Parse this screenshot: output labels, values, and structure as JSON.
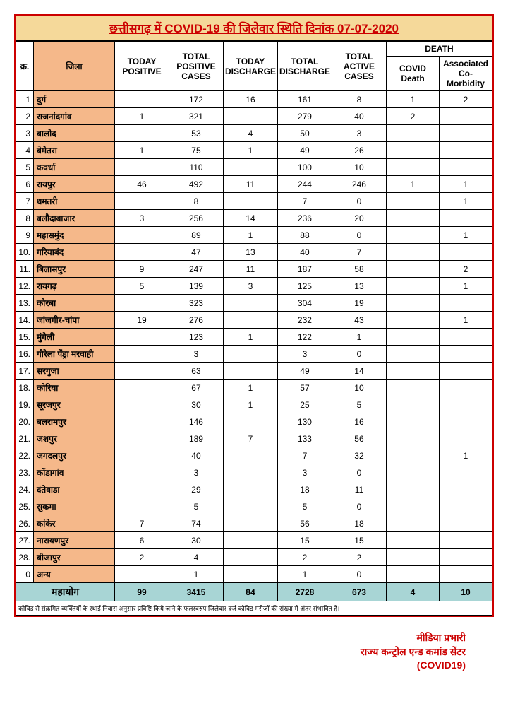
{
  "title": "छत्तीसगढ़ में COVID-19 की जिलेवार स्थिति दिनांक 07-07-2020",
  "headers": {
    "serial": "क्र.",
    "district": "जिला",
    "today_positive": "TODAY POSITIVE",
    "total_positive": "TOTAL POSITIVE CASES",
    "today_discharge": "TODAY DISCHARGE",
    "total_discharge": "TOTAL DISCHARGE",
    "total_active": "TOTAL ACTIVE CASES",
    "death": "DEATH",
    "covid_death": "COVID Death",
    "comorbidity": "Associated Co-Morbidity"
  },
  "rows": [
    {
      "n": "1",
      "d": "दुर्ग",
      "tp": "",
      "tpc": "172",
      "td": "16",
      "tdc": "161",
      "ac": "8",
      "cd": "1",
      "cm": "2"
    },
    {
      "n": "2",
      "d": "राजनांदगांव",
      "tp": "1",
      "tpc": "321",
      "td": "",
      "tdc": "279",
      "ac": "40",
      "cd": "2",
      "cm": ""
    },
    {
      "n": "3",
      "d": "बालोद",
      "tp": "",
      "tpc": "53",
      "td": "4",
      "tdc": "50",
      "ac": "3",
      "cd": "",
      "cm": ""
    },
    {
      "n": "4",
      "d": "बेमेतरा",
      "tp": "1",
      "tpc": "75",
      "td": "1",
      "tdc": "49",
      "ac": "26",
      "cd": "",
      "cm": ""
    },
    {
      "n": "5",
      "d": "कवर्धा",
      "tp": "",
      "tpc": "110",
      "td": "",
      "tdc": "100",
      "ac": "10",
      "cd": "",
      "cm": ""
    },
    {
      "n": "6",
      "d": "रायपुर",
      "tp": "46",
      "tpc": "492",
      "td": "11",
      "tdc": "244",
      "ac": "246",
      "cd": "1",
      "cm": "1"
    },
    {
      "n": "7",
      "d": "धमतरी",
      "tp": "",
      "tpc": "8",
      "td": "",
      "tdc": "7",
      "ac": "0",
      "cd": "",
      "cm": "1"
    },
    {
      "n": "8",
      "d": "बलौदाबाजार",
      "tp": "3",
      "tpc": "256",
      "td": "14",
      "tdc": "236",
      "ac": "20",
      "cd": "",
      "cm": ""
    },
    {
      "n": "9",
      "d": "महासमुंद",
      "tp": "",
      "tpc": "89",
      "td": "1",
      "tdc": "88",
      "ac": "0",
      "cd": "",
      "cm": "1"
    },
    {
      "n": "10.",
      "d": "गरियाबंद",
      "tp": "",
      "tpc": "47",
      "td": "13",
      "tdc": "40",
      "ac": "7",
      "cd": "",
      "cm": ""
    },
    {
      "n": "11.",
      "d": "बिलासपुर",
      "tp": "9",
      "tpc": "247",
      "td": "11",
      "tdc": "187",
      "ac": "58",
      "cd": "",
      "cm": "2"
    },
    {
      "n": "12.",
      "d": "रायगढ़",
      "tp": "5",
      "tpc": "139",
      "td": "3",
      "tdc": "125",
      "ac": "13",
      "cd": "",
      "cm": "1"
    },
    {
      "n": "13.",
      "d": "कोरबा",
      "tp": "",
      "tpc": "323",
      "td": "",
      "tdc": "304",
      "ac": "19",
      "cd": "",
      "cm": ""
    },
    {
      "n": "14.",
      "d": "जांजगीर-चांपा",
      "tp": "19",
      "tpc": "276",
      "td": "",
      "tdc": "232",
      "ac": "43",
      "cd": "",
      "cm": "1"
    },
    {
      "n": "15.",
      "d": "मुंगेली",
      "tp": "",
      "tpc": "123",
      "td": "1",
      "tdc": "122",
      "ac": "1",
      "cd": "",
      "cm": ""
    },
    {
      "n": "16.",
      "d": "गौरेला पेंड्रा मरवाही",
      "tp": "",
      "tpc": "3",
      "td": "",
      "tdc": "3",
      "ac": "0",
      "cd": "",
      "cm": ""
    },
    {
      "n": "17.",
      "d": "सरगुजा",
      "tp": "",
      "tpc": "63",
      "td": "",
      "tdc": "49",
      "ac": "14",
      "cd": "",
      "cm": ""
    },
    {
      "n": "18.",
      "d": "कोरिया",
      "tp": "",
      "tpc": "67",
      "td": "1",
      "tdc": "57",
      "ac": "10",
      "cd": "",
      "cm": ""
    },
    {
      "n": "19.",
      "d": "सूरजपुर",
      "tp": "",
      "tpc": "30",
      "td": "1",
      "tdc": "25",
      "ac": "5",
      "cd": "",
      "cm": ""
    },
    {
      "n": "20.",
      "d": "बलरामपुर",
      "tp": "",
      "tpc": "146",
      "td": "",
      "tdc": "130",
      "ac": "16",
      "cd": "",
      "cm": ""
    },
    {
      "n": "21.",
      "d": "जशपुर",
      "tp": "",
      "tpc": "189",
      "td": "7",
      "tdc": "133",
      "ac": "56",
      "cd": "",
      "cm": ""
    },
    {
      "n": "22.",
      "d": "जगदलपुर",
      "tp": "",
      "tpc": "40",
      "td": "",
      "tdc": "7",
      "ac": "32",
      "cd": "",
      "cm": "1"
    },
    {
      "n": "23.",
      "d": "कोंडागांव",
      "tp": "",
      "tpc": "3",
      "td": "",
      "tdc": "3",
      "ac": "0",
      "cd": "",
      "cm": ""
    },
    {
      "n": "24.",
      "d": "दंतेवाडा",
      "tp": "",
      "tpc": "29",
      "td": "",
      "tdc": "18",
      "ac": "11",
      "cd": "",
      "cm": ""
    },
    {
      "n": "25.",
      "d": "सुकमा",
      "tp": "",
      "tpc": "5",
      "td": "",
      "tdc": "5",
      "ac": "0",
      "cd": "",
      "cm": ""
    },
    {
      "n": "26.",
      "d": "कांकेर",
      "tp": "7",
      "tpc": "74",
      "td": "",
      "tdc": "56",
      "ac": "18",
      "cd": "",
      "cm": ""
    },
    {
      "n": "27.",
      "d": "नारायणपुर",
      "tp": "6",
      "tpc": "30",
      "td": "",
      "tdc": "15",
      "ac": "15",
      "cd": "",
      "cm": ""
    },
    {
      "n": "28.",
      "d": "बीजापुर",
      "tp": "2",
      "tpc": "4",
      "td": "",
      "tdc": "2",
      "ac": "2",
      "cd": "",
      "cm": ""
    },
    {
      "n": "0",
      "d": "अन्य",
      "tp": "",
      "tpc": "1",
      "td": "",
      "tdc": "1",
      "ac": "0",
      "cd": "",
      "cm": ""
    }
  ],
  "total": {
    "label": "महायोग",
    "tp": "99",
    "tpc": "3415",
    "td": "84",
    "tdc": "2728",
    "ac": "673",
    "cd": "4",
    "cm": "10"
  },
  "footnote": "कोविड से संक्रमित व्यक्तियों के स्थाई निवास अनुसार प्रविष्टि किये जाने के फलस्वरुप जिलेवार दर्ज कोविड मरीजों की संख्या में अंतर संभावित है।",
  "signature": {
    "line1": "मीडिया प्रभारी",
    "line2": "राज्य कन्ट्रोल एन्ड कमांड सेंटर",
    "line3": "(COVID19)"
  },
  "colwidths": {
    "serial": "25px",
    "district": "115px",
    "death_sub": "75px"
  }
}
